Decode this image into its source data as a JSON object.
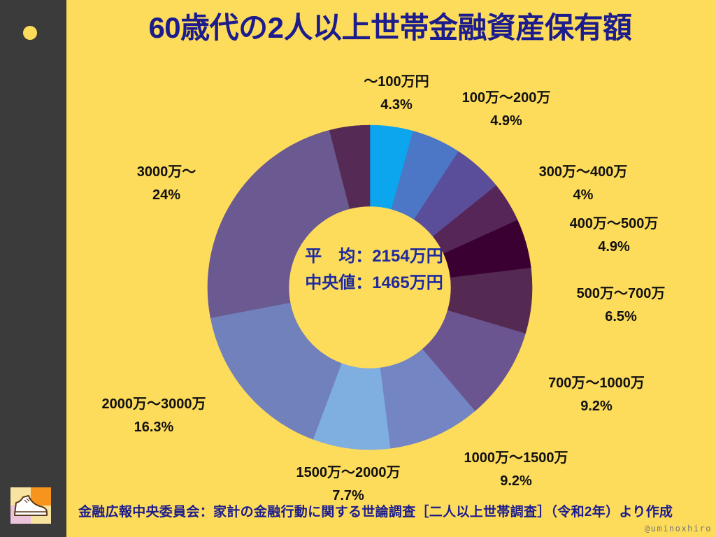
{
  "colors": {
    "background": "#FEDC5B",
    "sidebar": "#3B3B3B",
    "title": "#1C1C8C",
    "annotation": "#1E2A9E",
    "label": "#111111",
    "watermark": "#777777"
  },
  "sidebar": {
    "dot_icon": "circle-dot-icon",
    "logo_icon": "sneaker-logo-icon"
  },
  "chart_data": {
    "type": "pie",
    "donut": true,
    "title": "60歳代の2人以上世帯金融資産保有額",
    "annotations": [
      "平　均：2154万円",
      "中央値：1465万円"
    ],
    "slices": [
      {
        "label": "～100万円",
        "pct_label": "4.3%",
        "value": 4.3,
        "color": "#0CA6EF"
      },
      {
        "label": "100万～200万",
        "pct_label": "4.9%",
        "value": 4.9,
        "color": "#4B77C6"
      },
      {
        "value": 5.0,
        "color": "#5A4E9B"
      },
      {
        "label": "300万～400万",
        "pct_label": "4%",
        "value": 4.0,
        "color": "#572659"
      },
      {
        "label": "400万～500万",
        "pct_label": "4.9%",
        "value": 4.9,
        "color": "#3B0032"
      },
      {
        "label": "500万～700万",
        "pct_label": "6.5%",
        "value": 6.5,
        "color": "#552A52"
      },
      {
        "label": "700万～1000万",
        "pct_label": "9.2%",
        "value": 9.2,
        "color": "#6A5590"
      },
      {
        "label": "1000万～1500万",
        "pct_label": "9.2%",
        "value": 9.2,
        "color": "#7385C2"
      },
      {
        "label": "1500万～2000万",
        "pct_label": "7.7%",
        "value": 7.7,
        "color": "#7FAEE0"
      },
      {
        "label": "2000万～3000万",
        "pct_label": "16.3%",
        "value": 16.3,
        "color": "#7181BC"
      },
      {
        "label": "3000万～",
        "pct_label": "24%",
        "value": 24,
        "color": "#6A5A91"
      },
      {
        "value": 4.0,
        "color": "#552B55"
      }
    ]
  },
  "source": "金融広報中央委員会：家計の金融行動に関する世論調査［二人以上世帯調査］（令和2年）より作成",
  "watermark": "@uminoxhiro"
}
